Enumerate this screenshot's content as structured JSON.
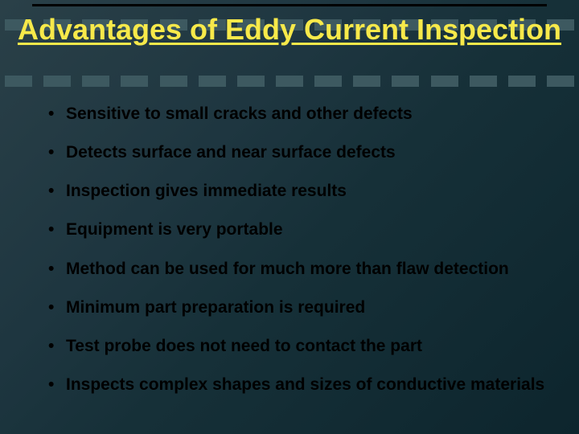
{
  "slide": {
    "title": "Advantages of Eddy Current Inspection",
    "bullets": [
      "Sensitive to small cracks and other defects",
      "Detects surface and near surface defects",
      "Inspection gives immediate results",
      "Equipment is very portable",
      "Method can be used for much more than flaw detection",
      "Minimum part preparation is required",
      "Test probe does not need to contact the part",
      "Inspects complex shapes and sizes of conductive materials"
    ]
  },
  "style": {
    "title_color": "#f7e94a",
    "title_fontsize": 36,
    "bullet_color": "#000000",
    "bullet_fontsize": 21,
    "bullet_weight": "bold",
    "background_gradient": [
      "#2a4048",
      "#1e3640",
      "#163038",
      "#0d252d"
    ],
    "dash_color": "#3d5960",
    "dash_width": 34,
    "dash_height": 14,
    "dash_count": 15,
    "top_rule_color": "#000000"
  }
}
